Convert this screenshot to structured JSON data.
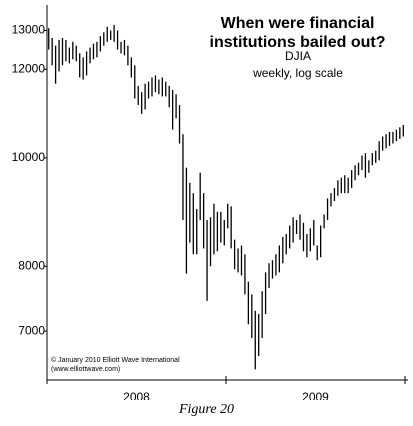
{
  "chart_data": {
    "type": "hilo",
    "title": "When were financial institutions bailed out?",
    "subtitle": "DJIA",
    "note": "weekly, log scale",
    "credits": [
      "© January 2010 Elliott Wave International",
      "(www.elliottwave.com)"
    ],
    "categories": [
      "2008",
      "2009"
    ],
    "log_scale": true,
    "color": "#000000",
    "ylim": [
      6330,
      13700
    ],
    "yticks": [
      7000,
      8000,
      10000,
      12000,
      13000
    ],
    "series": [
      {
        "name": "DJIA",
        "high": [
          13060,
          12800,
          12600,
          12750,
          12800,
          12750,
          12550,
          12700,
          12600,
          12400,
          12300,
          12450,
          12550,
          12650,
          12700,
          12850,
          12950,
          13100,
          13000,
          13150,
          13000,
          12700,
          12750,
          12600,
          12300,
          12100,
          11600,
          11450,
          11650,
          11700,
          11800,
          11850,
          11750,
          11800,
          11700,
          11600,
          11500,
          11400,
          11150,
          10500,
          9800,
          9500,
          9300,
          9000,
          9700,
          9300,
          8800,
          8850,
          9100,
          8950,
          8950,
          8800,
          9100,
          9050,
          8450,
          8300,
          8350,
          8200,
          7750,
          7550,
          7300,
          7250,
          7600,
          7900,
          8050,
          8100,
          8200,
          8350,
          8500,
          8550,
          8700,
          8850,
          8800,
          8900,
          8750,
          8550,
          8650,
          8800,
          8350,
          8700,
          8900,
          9200,
          9300,
          9400,
          9550,
          9600,
          9650,
          9600,
          9750,
          9850,
          9900,
          10050,
          10100,
          9950,
          10100,
          10150,
          10350,
          10450,
          10500,
          10550,
          10550,
          10600,
          10650,
          10700
        ],
        "low": [
          12500,
          12100,
          11650,
          11950,
          12100,
          12200,
          12150,
          12250,
          12200,
          11800,
          11750,
          11850,
          12150,
          12250,
          12300,
          12450,
          12600,
          12700,
          12750,
          12700,
          12500,
          12400,
          12350,
          12100,
          11800,
          11300,
          11150,
          10950,
          11050,
          11300,
          11350,
          11450,
          11400,
          11350,
          11350,
          11100,
          10600,
          10850,
          10300,
          8800,
          7880,
          8400,
          8200,
          8200,
          8800,
          8300,
          7450,
          8000,
          8200,
          8250,
          8400,
          8350,
          8650,
          8300,
          7950,
          7900,
          7850,
          7550,
          7100,
          6900,
          6470,
          6650,
          6900,
          7250,
          7650,
          7800,
          7850,
          7900,
          8050,
          8200,
          8300,
          8400,
          8550,
          8450,
          8250,
          8150,
          8250,
          8350,
          8100,
          8150,
          8650,
          8800,
          9050,
          9150,
          9250,
          9300,
          9300,
          9300,
          9400,
          9550,
          9650,
          9750,
          9600,
          9700,
          9850,
          9900,
          9950,
          10150,
          10200,
          10250,
          10300,
          10350,
          10400,
          10450
        ]
      }
    ]
  },
  "caption": "Figure 20"
}
